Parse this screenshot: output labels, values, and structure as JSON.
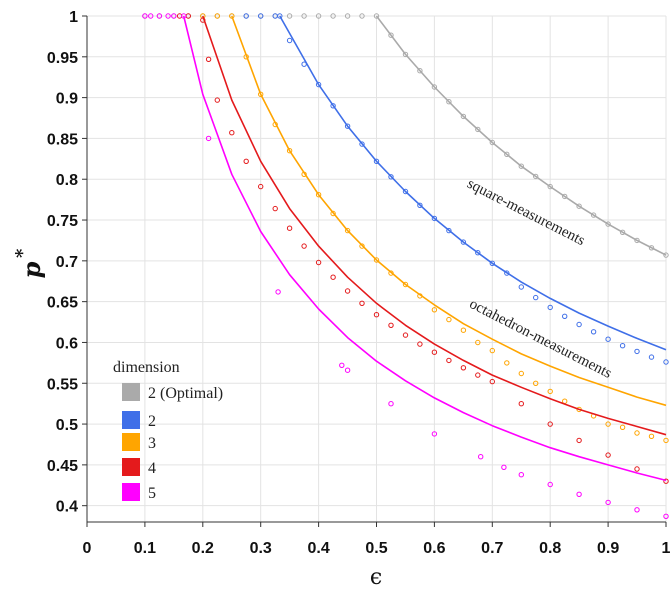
{
  "chart_data": {
    "type": "line",
    "title": "",
    "xlabel": "ϵ",
    "ylabel": "p",
    "ylabel_superscript": "*",
    "xlim": [
      0,
      1
    ],
    "ylim": [
      0.38,
      1
    ],
    "grid": true,
    "xticks": [
      0,
      0.1,
      0.2,
      0.3,
      0.4,
      0.5,
      0.6,
      0.7,
      0.8,
      0.9,
      1
    ],
    "xtick_labels": [
      "0",
      "0.1",
      "0.2",
      "0.3",
      "0.4",
      "0.5",
      "0.6",
      "0.7",
      "0.8",
      "0.9",
      "1"
    ],
    "yticks": [
      0.4,
      0.45,
      0.5,
      0.55,
      0.6,
      0.65,
      0.7,
      0.75,
      0.8,
      0.85,
      0.9,
      0.95,
      1
    ],
    "ytick_labels": [
      "0.4",
      "0.45",
      "0.5",
      "0.55",
      "0.6",
      "0.65",
      "0.7",
      "0.75",
      "0.8",
      "0.85",
      "0.9",
      "0.95",
      "1"
    ],
    "legend": {
      "title": "dimension",
      "position": "bottom-left",
      "entries": [
        {
          "label": "2 (Optimal)",
          "color": "#aaaaaa"
        },
        {
          "label": "2",
          "color": "#3f6fe8"
        },
        {
          "label": "3",
          "color": "#ffa500"
        },
        {
          "label": "4",
          "color": "#e41a1c"
        },
        {
          "label": "5",
          "color": "#ff00ff"
        }
      ]
    },
    "annotations": [
      {
        "text": "square-measurements",
        "at": [
          0.755,
          0.755
        ],
        "angle_deg": 27
      },
      {
        "text": "octahedron-measurements",
        "at": [
          0.78,
          0.6
        ],
        "angle_deg": 27
      }
    ],
    "series": [
      {
        "name": "2 (Optimal)",
        "color": "#aaaaaa",
        "kind": "curve+markers",
        "x": [
          0.5,
          0.55,
          0.6,
          0.65,
          0.7,
          0.75,
          0.8,
          0.85,
          0.9,
          0.95,
          1.0
        ],
        "y": [
          1.0,
          0.953,
          0.913,
          0.877,
          0.845,
          0.816,
          0.791,
          0.767,
          0.745,
          0.725,
          0.707
        ],
        "markers_x": [
          0.1,
          0.125,
          0.15,
          0.175,
          0.2,
          0.225,
          0.25,
          0.275,
          0.3,
          0.325,
          0.35,
          0.375,
          0.4,
          0.425,
          0.45,
          0.475,
          0.5,
          0.525,
          0.55,
          0.575,
          0.6,
          0.625,
          0.65,
          0.675,
          0.7,
          0.725,
          0.75,
          0.775,
          0.8,
          0.825,
          0.85,
          0.875,
          0.9,
          0.925,
          0.95,
          0.975,
          1.0
        ]
      },
      {
        "name": "2",
        "color": "#3f6fe8",
        "kind": "curve+markers",
        "x": [
          0.333,
          0.4,
          0.45,
          0.5,
          0.55,
          0.6,
          0.65,
          0.7,
          0.75,
          0.8,
          0.85,
          0.9,
          0.95,
          1.0
        ],
        "y": [
          1.0,
          0.916,
          0.865,
          0.822,
          0.785,
          0.752,
          0.723,
          0.697,
          0.674,
          0.654,
          0.636,
          0.62,
          0.605,
          0.591
        ],
        "markers_x": [
          0.275,
          0.3,
          0.325,
          0.333,
          0.35,
          0.375,
          0.4,
          0.425,
          0.45,
          0.475,
          0.5,
          0.525,
          0.55,
          0.575,
          0.6,
          0.625,
          0.65,
          0.675,
          0.7,
          0.725,
          0.75,
          0.775,
          0.8,
          0.825,
          0.85,
          0.875,
          0.9,
          0.925,
          0.95,
          0.975,
          1.0
        ],
        "markers_y": [
          1.0,
          1.0,
          1.0,
          1.0,
          0.97,
          0.941,
          0.916,
          0.89,
          0.865,
          0.843,
          0.822,
          0.803,
          0.785,
          0.768,
          0.752,
          0.737,
          0.723,
          0.71,
          0.697,
          0.685,
          0.668,
          0.655,
          0.643,
          0.632,
          0.622,
          0.613,
          0.604,
          0.596,
          0.589,
          0.582,
          0.576
        ]
      },
      {
        "name": "3",
        "color": "#ffa500",
        "kind": "curve+markers",
        "x": [
          0.25,
          0.3,
          0.35,
          0.4,
          0.45,
          0.5,
          0.55,
          0.6,
          0.65,
          0.7,
          0.75,
          0.8,
          0.85,
          0.9,
          0.95,
          1.0
        ],
        "y": [
          1.0,
          0.904,
          0.835,
          0.781,
          0.737,
          0.701,
          0.671,
          0.646,
          0.623,
          0.604,
          0.586,
          0.571,
          0.557,
          0.545,
          0.533,
          0.523
        ],
        "markers_x": [
          0.2,
          0.225,
          0.25,
          0.275,
          0.3,
          0.325,
          0.35,
          0.375,
          0.4,
          0.425,
          0.45,
          0.475,
          0.5,
          0.525,
          0.55,
          0.575,
          0.6,
          0.625,
          0.65,
          0.675,
          0.7,
          0.725,
          0.75,
          0.775,
          0.8,
          0.825,
          0.85,
          0.875,
          0.9,
          0.925,
          0.95,
          0.975,
          1.0
        ],
        "markers_y": [
          1.0,
          1.0,
          1.0,
          0.95,
          0.904,
          0.867,
          0.835,
          0.806,
          0.781,
          0.758,
          0.737,
          0.718,
          0.701,
          0.685,
          0.671,
          0.657,
          0.64,
          0.628,
          0.615,
          0.6,
          0.59,
          0.575,
          0.562,
          0.55,
          0.54,
          0.528,
          0.518,
          0.51,
          0.5,
          0.496,
          0.489,
          0.485,
          0.48
        ]
      },
      {
        "name": "4",
        "color": "#e41a1c",
        "kind": "curve+markers",
        "x": [
          0.2,
          0.25,
          0.3,
          0.35,
          0.4,
          0.45,
          0.5,
          0.55,
          0.6,
          0.65,
          0.7,
          0.75,
          0.8,
          0.85,
          0.9,
          0.95,
          1.0
        ],
        "y": [
          1.0,
          0.897,
          0.822,
          0.764,
          0.718,
          0.68,
          0.648,
          0.621,
          0.598,
          0.578,
          0.56,
          0.545,
          0.531,
          0.518,
          0.507,
          0.497,
          0.487
        ],
        "markers_x": [
          0.16,
          0.175,
          0.2,
          0.21,
          0.225,
          0.25,
          0.275,
          0.3,
          0.325,
          0.35,
          0.375,
          0.4,
          0.425,
          0.45,
          0.475,
          0.5,
          0.525,
          0.55,
          0.575,
          0.6,
          0.625,
          0.65,
          0.675,
          0.7,
          0.75,
          0.8,
          0.85,
          0.9,
          0.95,
          1.0
        ],
        "markers_y": [
          1.0,
          1.0,
          0.995,
          0.947,
          0.897,
          0.857,
          0.822,
          0.791,
          0.764,
          0.74,
          0.718,
          0.698,
          0.68,
          0.663,
          0.648,
          0.634,
          0.621,
          0.609,
          0.598,
          0.588,
          0.578,
          0.569,
          0.56,
          0.552,
          0.525,
          0.5,
          0.48,
          0.462,
          0.445,
          0.43
        ]
      },
      {
        "name": "5",
        "color": "#ff00ff",
        "kind": "curve+markers",
        "x": [
          0.167,
          0.2,
          0.25,
          0.3,
          0.35,
          0.4,
          0.45,
          0.5,
          0.55,
          0.6,
          0.65,
          0.7,
          0.75,
          0.8,
          0.85,
          0.9,
          0.95,
          1.0
        ],
        "y": [
          1.0,
          0.904,
          0.806,
          0.736,
          0.683,
          0.641,
          0.606,
          0.577,
          0.553,
          0.532,
          0.514,
          0.498,
          0.484,
          0.471,
          0.46,
          0.45,
          0.44,
          0.431
        ],
        "markers_x": [
          0.1,
          0.11,
          0.125,
          0.14,
          0.15,
          0.167,
          0.21,
          0.33,
          0.44,
          0.45,
          0.525,
          0.6,
          0.68,
          0.72,
          0.75,
          0.8,
          0.85,
          0.9,
          0.95,
          1.0
        ],
        "markers_y": [
          1.0,
          1.0,
          1.0,
          1.0,
          1.0,
          1.0,
          0.85,
          0.662,
          0.572,
          0.566,
          0.525,
          0.488,
          0.46,
          0.447,
          0.438,
          0.426,
          0.414,
          0.404,
          0.395,
          0.387
        ]
      }
    ]
  }
}
